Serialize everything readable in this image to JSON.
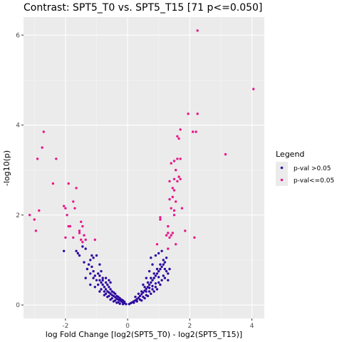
{
  "chart_data": {
    "type": "scatter",
    "title": "Contrast: SPT5_T0 vs. SPT5_T15  [71 p<=0.050]",
    "xlabel": "log Fold Change [log2(SPT5_T0) - log2(SPT5_T15)]",
    "ylabel": "-log10(p)",
    "xlim": [
      -3.35,
      4.4
    ],
    "ylim": [
      -0.3,
      6.4
    ],
    "x_ticks": [
      -2,
      0,
      2,
      4
    ],
    "y_ticks": [
      0,
      2,
      4,
      6
    ],
    "grid": true,
    "legend_position": "right",
    "legend": {
      "title": "Legend",
      "entries": [
        {
          "label": "p-val >0.05",
          "color": "#2e0aa0"
        },
        {
          "label": "p-val<=0.05",
          "color": "#e8178a"
        }
      ]
    },
    "background_color": "#ebebeb",
    "series": [
      {
        "name": "p-val >0.05",
        "color": "#2e0aa0",
        "points": [
          [
            -2.05,
            1.2
          ],
          [
            -1.65,
            1.2
          ],
          [
            -1.6,
            1.15
          ],
          [
            -1.55,
            1.1
          ],
          [
            -1.45,
            1.3
          ],
          [
            -1.35,
            1.25
          ],
          [
            -1.2,
            1.0
          ],
          [
            -1.1,
            1.05
          ],
          [
            -1.0,
            1.1
          ],
          [
            -1.3,
            0.8
          ],
          [
            -1.2,
            0.7
          ],
          [
            -1.05,
            0.65
          ],
          [
            -0.9,
            0.55
          ],
          [
            -0.85,
            0.5
          ],
          [
            -0.8,
            0.45
          ],
          [
            -0.75,
            0.4
          ],
          [
            -0.7,
            0.35
          ],
          [
            -0.65,
            0.3
          ],
          [
            -0.6,
            0.28
          ],
          [
            -0.55,
            0.25
          ],
          [
            -0.5,
            0.22
          ],
          [
            -0.45,
            0.2
          ],
          [
            -0.4,
            0.17
          ],
          [
            -0.35,
            0.14
          ],
          [
            -0.3,
            0.12
          ],
          [
            -0.25,
            0.1
          ],
          [
            -0.2,
            0.08
          ],
          [
            -0.15,
            0.06
          ],
          [
            -0.1,
            0.04
          ],
          [
            -0.05,
            0.02
          ],
          [
            -1.25,
            0.9
          ],
          [
            -1.15,
            0.85
          ],
          [
            -0.95,
            0.7
          ],
          [
            -0.9,
            0.65
          ],
          [
            -0.8,
            0.55
          ],
          [
            -0.7,
            0.5
          ],
          [
            -0.65,
            0.45
          ],
          [
            -0.6,
            0.4
          ],
          [
            -0.55,
            0.35
          ],
          [
            -0.5,
            0.3
          ],
          [
            -0.45,
            0.28
          ],
          [
            -0.4,
            0.25
          ],
          [
            -0.35,
            0.2
          ],
          [
            -0.3,
            0.18
          ],
          [
            -0.25,
            0.15
          ],
          [
            -0.2,
            0.12
          ],
          [
            -0.15,
            0.1
          ],
          [
            -0.1,
            0.07
          ],
          [
            -1.4,
            0.95
          ],
          [
            -1.35,
            0.6
          ],
          [
            -1.1,
            0.75
          ],
          [
            -1.0,
            0.55
          ],
          [
            -0.95,
            0.45
          ],
          [
            -0.85,
            0.35
          ],
          [
            -0.75,
            0.3
          ],
          [
            -0.7,
            0.25
          ],
          [
            -0.6,
            0.2
          ],
          [
            -0.5,
            0.15
          ],
          [
            -0.4,
            0.1
          ],
          [
            -0.3,
            0.06
          ],
          [
            -1.2,
            0.45
          ],
          [
            -1.05,
            0.4
          ],
          [
            -0.9,
            0.3
          ],
          [
            -0.75,
            0.22
          ],
          [
            -0.65,
            0.18
          ],
          [
            -0.55,
            0.12
          ],
          [
            -0.45,
            0.08
          ],
          [
            -0.35,
            0.05
          ],
          [
            -0.25,
            0.03
          ],
          [
            -0.15,
            0.02
          ],
          [
            -1.1,
            0.6
          ],
          [
            -0.85,
            0.75
          ],
          [
            -0.8,
            0.6
          ],
          [
            -0.7,
            0.6
          ],
          [
            -0.9,
            0.9
          ],
          [
            -1.15,
            1.1
          ],
          [
            -0.55,
            0.5
          ],
          [
            -0.6,
            0.55
          ],
          [
            0.05,
            0.02
          ],
          [
            0.1,
            0.04
          ],
          [
            0.15,
            0.06
          ],
          [
            0.2,
            0.08
          ],
          [
            0.25,
            0.1
          ],
          [
            0.3,
            0.13
          ],
          [
            0.35,
            0.16
          ],
          [
            0.4,
            0.2
          ],
          [
            0.45,
            0.24
          ],
          [
            0.5,
            0.28
          ],
          [
            0.55,
            0.32
          ],
          [
            0.6,
            0.36
          ],
          [
            0.65,
            0.4
          ],
          [
            0.7,
            0.45
          ],
          [
            0.75,
            0.5
          ],
          [
            0.8,
            0.55
          ],
          [
            0.85,
            0.6
          ],
          [
            0.9,
            0.65
          ],
          [
            0.95,
            0.7
          ],
          [
            1.0,
            0.75
          ],
          [
            1.05,
            0.8
          ],
          [
            1.1,
            0.85
          ],
          [
            1.15,
            0.9
          ],
          [
            1.2,
            0.95
          ],
          [
            0.2,
            0.05
          ],
          [
            0.3,
            0.08
          ],
          [
            0.4,
            0.12
          ],
          [
            0.5,
            0.18
          ],
          [
            0.6,
            0.22
          ],
          [
            0.7,
            0.3
          ],
          [
            0.8,
            0.35
          ],
          [
            0.9,
            0.4
          ],
          [
            1.0,
            0.5
          ],
          [
            1.1,
            0.55
          ],
          [
            1.2,
            0.6
          ],
          [
            1.3,
            0.7
          ],
          [
            0.35,
            0.25
          ],
          [
            0.45,
            0.3
          ],
          [
            0.55,
            0.4
          ],
          [
            0.65,
            0.5
          ],
          [
            0.75,
            0.6
          ],
          [
            0.85,
            0.7
          ],
          [
            0.95,
            0.8
          ],
          [
            1.05,
            0.9
          ],
          [
            1.15,
            1.0
          ],
          [
            1.25,
            1.05
          ],
          [
            1.35,
            0.8
          ],
          [
            1.1,
            1.2
          ],
          [
            0.75,
            1.05
          ],
          [
            0.8,
            0.9
          ],
          [
            0.7,
            0.75
          ],
          [
            0.6,
            0.6
          ],
          [
            0.5,
            0.45
          ],
          [
            0.9,
            1.1
          ],
          [
            1.0,
            1.15
          ],
          [
            1.25,
            0.75
          ],
          [
            1.2,
            0.8
          ],
          [
            0.65,
            0.2
          ],
          [
            0.55,
            0.15
          ],
          [
            0.45,
            0.1
          ],
          [
            0.75,
            0.25
          ],
          [
            0.85,
            0.3
          ],
          [
            0.95,
            0.35
          ],
          [
            1.05,
            0.45
          ],
          [
            1.15,
            0.65
          ],
          [
            0.25,
            0.18
          ],
          [
            0.6,
            0.3
          ],
          [
            0.7,
            0.38
          ],
          [
            0.8,
            0.42
          ],
          [
            0.9,
            0.48
          ],
          [
            1.0,
            0.62
          ],
          [
            1.3,
            0.55
          ]
        ]
      },
      {
        "name": "p-val<=0.05",
        "color": "#e8178a",
        "points": [
          [
            -3.15,
            2.0
          ],
          [
            -3.0,
            1.9
          ],
          [
            -2.95,
            1.65
          ],
          [
            -2.85,
            2.1
          ],
          [
            -2.75,
            3.5
          ],
          [
            -2.7,
            3.85
          ],
          [
            -2.9,
            3.25
          ],
          [
            -2.3,
            3.25
          ],
          [
            -2.4,
            2.7
          ],
          [
            -2.05,
            2.2
          ],
          [
            -2.0,
            2.15
          ],
          [
            -1.95,
            2.0
          ],
          [
            -1.9,
            2.7
          ],
          [
            -1.85,
            1.75
          ],
          [
            -1.75,
            2.3
          ],
          [
            -1.7,
            2.15
          ],
          [
            -1.65,
            2.6
          ],
          [
            -1.9,
            1.75
          ],
          [
            -2.0,
            1.5
          ],
          [
            -1.75,
            1.5
          ],
          [
            -1.5,
            1.85
          ],
          [
            -1.45,
            1.75
          ],
          [
            -1.4,
            1.55
          ],
          [
            -1.35,
            1.45
          ],
          [
            -1.55,
            1.65
          ],
          [
            -1.5,
            1.45
          ],
          [
            -1.45,
            1.4
          ],
          [
            -1.05,
            1.45
          ],
          [
            -1.55,
            1.6
          ],
          [
            2.25,
            6.1
          ],
          [
            4.05,
            4.8
          ],
          [
            1.95,
            4.25
          ],
          [
            2.25,
            4.25
          ],
          [
            1.7,
            3.9
          ],
          [
            2.1,
            3.85
          ],
          [
            2.2,
            3.85
          ],
          [
            1.6,
            3.75
          ],
          [
            1.65,
            3.7
          ],
          [
            3.15,
            3.35
          ],
          [
            1.7,
            3.25
          ],
          [
            1.6,
            3.25
          ],
          [
            1.5,
            3.2
          ],
          [
            1.4,
            3.15
          ],
          [
            1.55,
            3.0
          ],
          [
            1.35,
            2.75
          ],
          [
            1.5,
            2.8
          ],
          [
            1.6,
            2.75
          ],
          [
            1.7,
            2.8
          ],
          [
            1.65,
            2.85
          ],
          [
            1.45,
            2.6
          ],
          [
            1.5,
            2.55
          ],
          [
            1.55,
            2.3
          ],
          [
            1.45,
            2.4
          ],
          [
            1.35,
            2.35
          ],
          [
            1.4,
            2.15
          ],
          [
            1.3,
            1.75
          ],
          [
            1.5,
            2.1
          ],
          [
            1.75,
            2.15
          ],
          [
            1.85,
            1.65
          ],
          [
            2.15,
            1.5
          ],
          [
            1.35,
            1.5
          ],
          [
            1.4,
            1.55
          ],
          [
            1.45,
            1.6
          ],
          [
            1.3,
            1.6
          ],
          [
            1.25,
            1.55
          ],
          [
            1.05,
            1.9
          ],
          [
            1.05,
            1.95
          ],
          [
            1.3,
            1.25
          ],
          [
            1.55,
            1.35
          ],
          [
            0.95,
            1.35
          ],
          [
            1.5,
            2.0
          ]
        ]
      }
    ]
  }
}
